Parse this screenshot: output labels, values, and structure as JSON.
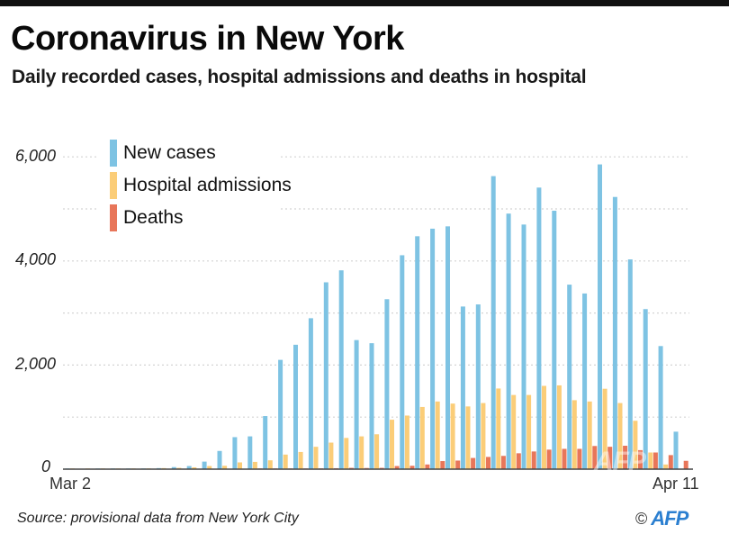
{
  "header": {
    "title": "Coronavirus in New York",
    "subtitle": "Daily recorded cases, hospital admissions and deaths in hospital"
  },
  "footer": {
    "source": "Source: provisional data from New York City",
    "copyright_symbol": "©",
    "agency": "AFP"
  },
  "chart_data": {
    "type": "bar",
    "title": "Coronavirus in New York",
    "subtitle": "Daily recorded cases, hospital admissions and deaths in hospital",
    "xlabel": "",
    "ylabel": "",
    "ylim": [
      0,
      6000
    ],
    "grid": true,
    "legend_position": "top-left",
    "y_ticks": [
      {
        "value": 0,
        "label": "0"
      },
      {
        "value": 2000,
        "label": "2,000"
      },
      {
        "value": 4000,
        "label": "4,000"
      },
      {
        "value": 6000,
        "label": "6,000"
      }
    ],
    "gridlines": [
      1000,
      2000,
      3000,
      4000,
      5000,
      6000
    ],
    "x_tick_labels": [
      {
        "index": 0,
        "label": "Mar 2"
      },
      {
        "index": 40,
        "label": "Apr 11"
      }
    ],
    "categories": [
      "Mar 2",
      "Mar 3",
      "Mar 4",
      "Mar 5",
      "Mar 6",
      "Mar 7",
      "Mar 8",
      "Mar 9",
      "Mar 10",
      "Mar 11",
      "Mar 12",
      "Mar 13",
      "Mar 14",
      "Mar 15",
      "Mar 16",
      "Mar 17",
      "Mar 18",
      "Mar 19",
      "Mar 20",
      "Mar 21",
      "Mar 22",
      "Mar 23",
      "Mar 24",
      "Mar 25",
      "Mar 26",
      "Mar 27",
      "Mar 28",
      "Mar 29",
      "Mar 30",
      "Mar 31",
      "Apr 1",
      "Apr 2",
      "Apr 3",
      "Apr 4",
      "Apr 5",
      "Apr 6",
      "Apr 7",
      "Apr 8",
      "Apr 9",
      "Apr 10",
      "Apr 11"
    ],
    "series": [
      {
        "name": "New cases",
        "color": "#7ec3e3",
        "values": [
          1,
          0,
          1,
          2,
          5,
          10,
          20,
          40,
          60,
          145,
          350,
          615,
          630,
          1020,
          2100,
          2390,
          2900,
          3590,
          3820,
          2480,
          2420,
          3265,
          4110,
          4475,
          4620,
          4665,
          3125,
          3165,
          5630,
          4910,
          4700,
          5410,
          4965,
          3545,
          3375,
          5855,
          5230,
          4030,
          3075,
          2365,
          720
        ]
      },
      {
        "name": "Hospital admissions",
        "color": "#fbcd78",
        "values": [
          3,
          5,
          8,
          10,
          12,
          15,
          20,
          25,
          35,
          60,
          65,
          130,
          140,
          170,
          280,
          330,
          430,
          510,
          600,
          630,
          670,
          950,
          1030,
          1195,
          1300,
          1260,
          1205,
          1270,
          1550,
          1425,
          1425,
          1600,
          1610,
          1325,
          1300,
          1545,
          1270,
          930,
          320,
          90,
          0
        ]
      },
      {
        "name": "Deaths",
        "color": "#e8765a",
        "values": [
          0,
          0,
          0,
          0,
          0,
          0,
          0,
          0,
          0,
          0,
          0,
          0,
          1,
          2,
          5,
          8,
          15,
          18,
          25,
          22,
          25,
          60,
          65,
          90,
          155,
          165,
          215,
          235,
          255,
          305,
          340,
          375,
          390,
          390,
          445,
          430,
          450,
          365,
          320,
          270,
          160
        ]
      }
    ]
  }
}
